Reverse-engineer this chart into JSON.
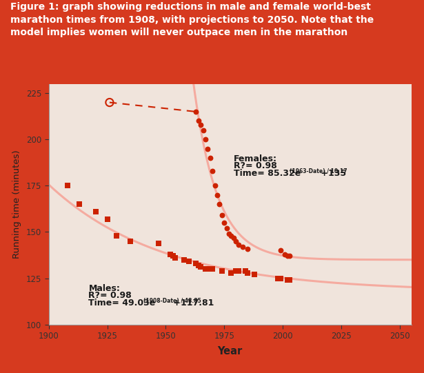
{
  "title_line1": "Figure 1: graph showing reductions in male and female world-best",
  "title_line2": "marathon times from 1908, with projections to 2050. Note that the",
  "title_line3": "model implies women will never outpace men in the marathon",
  "title_bg": "#d63a1f",
  "title_color": "#ffffff",
  "plot_bg": "#f0e4dc",
  "outer_bg": "#d63a1f",
  "inner_bg": "#f0e4dc",
  "xlabel": "Year",
  "ylabel": "Running time (minutes)",
  "xlim": [
    1900,
    2055
  ],
  "ylim": [
    100,
    230
  ],
  "xticks": [
    1900,
    1925,
    1950,
    1975,
    2000,
    2025,
    2050
  ],
  "yticks": [
    100,
    125,
    150,
    175,
    200,
    225
  ],
  "male_data": [
    [
      1908,
      175
    ],
    [
      1913,
      165
    ],
    [
      1920,
      161
    ],
    [
      1925,
      157
    ],
    [
      1929,
      148
    ],
    [
      1935,
      145
    ],
    [
      1947,
      144
    ],
    [
      1952,
      138
    ],
    [
      1953,
      137
    ],
    [
      1954,
      136
    ],
    [
      1958,
      135
    ],
    [
      1960,
      134
    ],
    [
      1963,
      133
    ],
    [
      1964,
      132
    ],
    [
      1965,
      131
    ],
    [
      1967,
      130
    ],
    [
      1969,
      130
    ],
    [
      1970,
      130
    ],
    [
      1974,
      129
    ],
    [
      1978,
      128
    ],
    [
      1980,
      129
    ],
    [
      1981,
      129
    ],
    [
      1984,
      129
    ],
    [
      1985,
      128
    ],
    [
      1988,
      127
    ],
    [
      1998,
      125
    ],
    [
      1999,
      125
    ],
    [
      2002,
      124
    ],
    [
      2003,
      124
    ]
  ],
  "female_data_solid": [
    [
      1963,
      215
    ],
    [
      1964,
      210
    ],
    [
      1965,
      208
    ],
    [
      1966,
      205
    ],
    [
      1967,
      200
    ],
    [
      1968,
      195
    ],
    [
      1969,
      190
    ],
    [
      1970,
      183
    ],
    [
      1971,
      175
    ],
    [
      1972,
      170
    ],
    [
      1973,
      165
    ],
    [
      1974,
      159
    ],
    [
      1975,
      155
    ],
    [
      1976,
      152
    ],
    [
      1977,
      149
    ],
    [
      1978,
      148
    ],
    [
      1979,
      147
    ],
    [
      1980,
      145
    ],
    [
      1981,
      143
    ],
    [
      1983,
      142
    ],
    [
      1985,
      141
    ],
    [
      1999,
      140
    ],
    [
      2001,
      138
    ],
    [
      2002,
      137
    ],
    [
      2003,
      137
    ]
  ],
  "female_data_dashed": [
    [
      1926,
      220
    ],
    [
      1963,
      215
    ]
  ],
  "female_open_circle": [
    1926,
    220
  ],
  "male_curve_color": "#f5aba0",
  "female_curve_color": "#f5aba0",
  "male_marker_color": "#cc2200",
  "female_marker_color": "#cc2200",
  "female_dashed_color": "#cc2200",
  "annotation_color": "#1a1a1a"
}
